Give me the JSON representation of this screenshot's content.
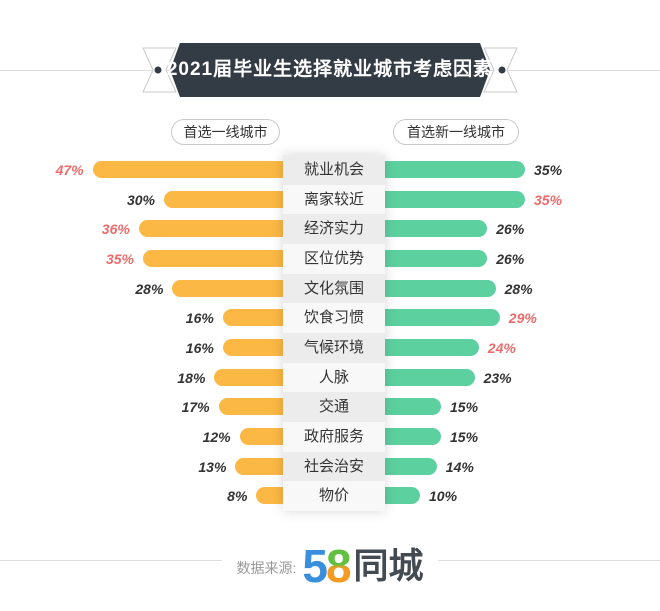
{
  "banner": {
    "title": "2021届毕业生选择就业城市考虑因素"
  },
  "legend": {
    "left": "首选一线城市",
    "right": "首选新一线城市"
  },
  "chart_data": {
    "type": "bar",
    "subtype": "diverging-horizontal",
    "title": "2021届毕业生选择就业城市考虑因素",
    "unit": "%",
    "axis_labels_shown": false,
    "categories": [
      "就业机会",
      "离家较近",
      "经济实力",
      "区位优势",
      "文化氛围",
      "饮食习惯",
      "气候环境",
      "人脉",
      "交通",
      "政府服务",
      "社会治安",
      "物价"
    ],
    "series": [
      {
        "name": "首选一线城市",
        "side": "left",
        "color": "#FBB844",
        "values": [
          47,
          30,
          36,
          35,
          28,
          16,
          16,
          18,
          17,
          12,
          13,
          8
        ],
        "highlight": [
          true,
          false,
          true,
          true,
          false,
          false,
          false,
          false,
          false,
          false,
          false,
          false
        ]
      },
      {
        "name": "首选新一线城市",
        "side": "right",
        "color": "#5DD0A0",
        "values": [
          35,
          35,
          26,
          26,
          28,
          29,
          24,
          23,
          15,
          15,
          14,
          10
        ],
        "highlight": [
          false,
          true,
          false,
          false,
          false,
          true,
          true,
          false,
          false,
          false,
          false,
          false
        ]
      }
    ],
    "value_label_color": "#333333",
    "value_label_highlight_color": "#EE6B6B"
  },
  "colors": {
    "banner_bg": "#333B44",
    "left_bar": "#FBB844",
    "right_bar": "#5DD0A0",
    "highlight": "#EE6B6B",
    "divider_line": "#DEDEDE"
  },
  "footer": {
    "source_label": "数据来源:",
    "logo_5": "5",
    "logo_8": "8",
    "logo_cn": "同城"
  }
}
